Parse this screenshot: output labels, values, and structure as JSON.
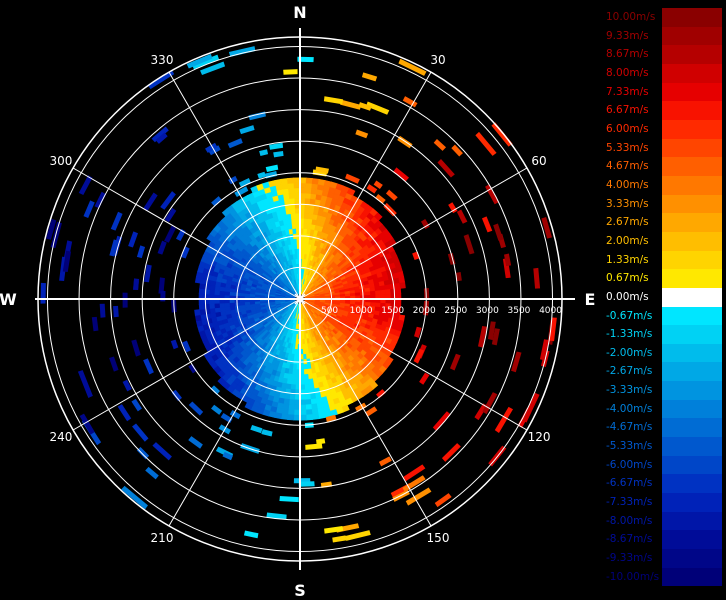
{
  "chart_data": {
    "type": "polar-radar-velocity",
    "compass": {
      "north": "N",
      "east": "E",
      "south": "S",
      "west": "W"
    },
    "azimuth_labels": [
      "30",
      "60",
      "120",
      "150",
      "210",
      "240",
      "300",
      "330"
    ],
    "azimuth_label_angles_deg": [
      30,
      60,
      120,
      150,
      210,
      240,
      300,
      330
    ],
    "range_rings": [
      500,
      1000,
      1500,
      2000,
      2500,
      3000,
      3500,
      4000
    ],
    "range_labels": [
      "500",
      "1000",
      "1500",
      "2000",
      "2500",
      "3000",
      "3500",
      "4000"
    ],
    "range_max": 4150,
    "velocity_unit": "m/s",
    "velocity_range": [
      -10,
      10
    ],
    "approaching_sector_deg": [
      180,
      360
    ],
    "receding_sector_deg": [
      0,
      180
    ],
    "dense_echo_radius": 1900,
    "colorbar": [
      {
        "label": "10.00m/s",
        "color": "#8a0000"
      },
      {
        "label": "9.33m/s",
        "color": "#a00000"
      },
      {
        "label": "8.67m/s",
        "color": "#b50000"
      },
      {
        "label": "8.00m/s",
        "color": "#d00000"
      },
      {
        "label": "7.33m/s",
        "color": "#e60000"
      },
      {
        "label": "6.67m/s",
        "color": "#f81200"
      },
      {
        "label": "6.00m/s",
        "color": "#ff2a00"
      },
      {
        "label": "5.33m/s",
        "color": "#ff4500"
      },
      {
        "label": "4.67m/s",
        "color": "#ff5f00"
      },
      {
        "label": "4.00m/s",
        "color": "#ff7800"
      },
      {
        "label": "3.33m/s",
        "color": "#ff9000"
      },
      {
        "label": "2.67m/s",
        "color": "#ffa800"
      },
      {
        "label": "2.00m/s",
        "color": "#ffbe00"
      },
      {
        "label": "1.33m/s",
        "color": "#ffd400"
      },
      {
        "label": "0.67m/s",
        "color": "#ffe800"
      },
      {
        "label": "0.00m/s",
        "color": "#ffffff"
      },
      {
        "label": "-0.67m/s",
        "color": "#00e6ff"
      },
      {
        "label": "-1.33m/s",
        "color": "#00d2f4"
      },
      {
        "label": "-2.00m/s",
        "color": "#00bcec"
      },
      {
        "label": "-2.67m/s",
        "color": "#00a8e6"
      },
      {
        "label": "-3.33m/s",
        "color": "#0094e0"
      },
      {
        "label": "-4.00m/s",
        "color": "#0080da"
      },
      {
        "label": "-4.67m/s",
        "color": "#006cd4"
      },
      {
        "label": "-5.33m/s",
        "color": "#0058ce"
      },
      {
        "label": "-6.00m/s",
        "color": "#0046c8"
      },
      {
        "label": "-6.67m/s",
        "color": "#0032c2"
      },
      {
        "label": "-7.33m/s",
        "color": "#0022b8"
      },
      {
        "label": "-8.00m/s",
        "color": "#0016a8"
      },
      {
        "label": "-8.67m/s",
        "color": "#000c98"
      },
      {
        "label": "-9.33m/s",
        "color": "#000688"
      },
      {
        "label": "-10.00m/s",
        "color": "#000078"
      }
    ]
  }
}
